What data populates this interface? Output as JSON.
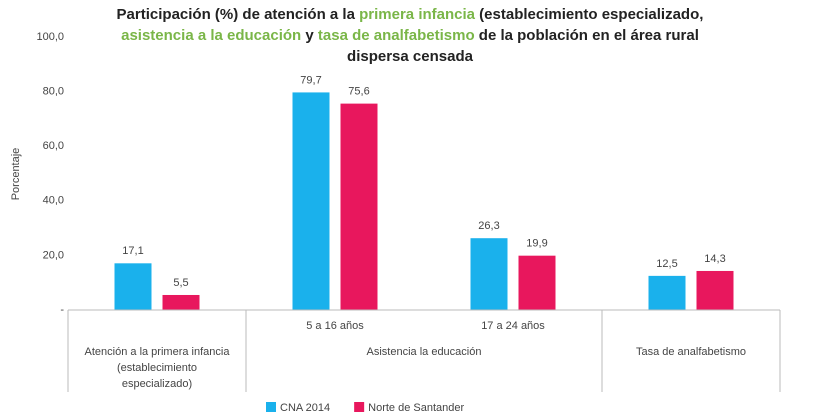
{
  "chart_data": {
    "type": "bar",
    "title": [
      [
        {
          "text": "Participación (%) de atención a la "
        },
        {
          "text": "primera infancia",
          "color": "#7ab648"
        },
        {
          "text": " (establecimiento especializado,"
        }
      ],
      [
        {
          "text": "asistencia a la educación",
          "color": "#7ab648"
        },
        {
          "text": " y "
        },
        {
          "text": "tasa de analfabetismo",
          "color": "#7ab648"
        },
        {
          "text": " de la población en el área rural"
        }
      ],
      [
        {
          "text": "dispersa censada"
        }
      ]
    ],
    "y_label": "Porcentaje",
    "groups": [
      {
        "label": [
          "Atención a la primera infancia",
          "(establecimiento",
          "especializado)"
        ],
        "categories": [
          null
        ]
      },
      {
        "label": [
          "Asistencia la educación"
        ],
        "categories": [
          "5 a 16 años",
          "17 a 24 años"
        ]
      },
      {
        "label": [
          "Tasa de analfabetismo"
        ],
        "categories": [
          null
        ]
      }
    ],
    "series": [
      {
        "name": "CNA 2014",
        "color": "#1ab1ec",
        "values": [
          17.1,
          79.7,
          26.3,
          12.5
        ],
        "value_labels": [
          "17,1",
          "79,7",
          "26,3",
          "12,5"
        ]
      },
      {
        "name": "Norte de Santander",
        "color": "#e8175d",
        "values": [
          5.5,
          75.6,
          19.9,
          14.3
        ],
        "value_labels": [
          "5,5",
          "75,6",
          "19,9",
          "14,3"
        ]
      }
    ],
    "ylim": [
      0,
      100
    ],
    "yticks": [
      {
        "value": 0,
        "label": "-"
      },
      {
        "value": 20,
        "label": "20,0"
      },
      {
        "value": 40,
        "label": "40,0"
      },
      {
        "value": 60,
        "label": "60,0"
      },
      {
        "value": 80,
        "label": "80,0"
      },
      {
        "value": 100,
        "label": "100,0"
      }
    ]
  }
}
